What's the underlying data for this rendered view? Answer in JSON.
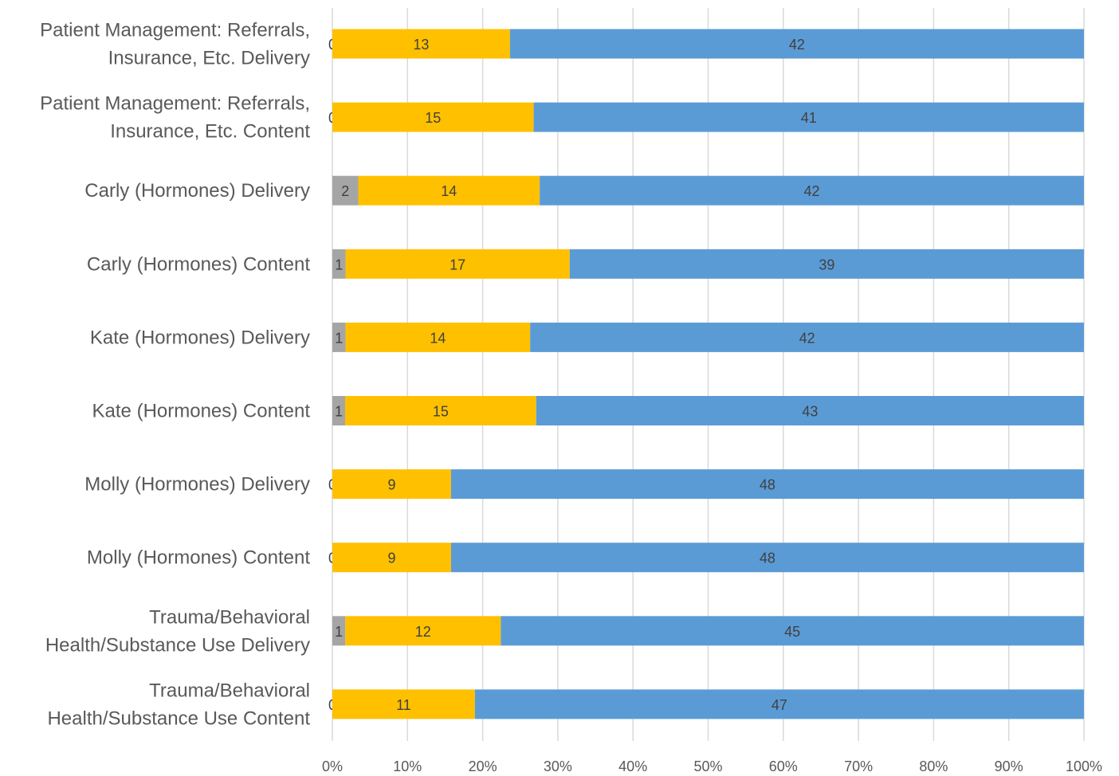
{
  "chart_data": {
    "type": "bar",
    "orientation": "horizontal",
    "stacked": "percent",
    "categories": [
      "Patient Management: Referrals, Insurance, Etc. Delivery",
      "Patient Management: Referrals, Insurance, Etc. Content",
      "Carly (Hormones) Delivery",
      "Carly (Hormones) Content",
      "Kate (Hormones) Delivery",
      "Kate (Hormones) Content",
      "Molly (Hormones) Delivery",
      "Molly (Hormones) Content",
      "Trauma/Behavioral Health/Substance Use Delivery",
      "Trauma/Behavioral Health/Substance Use Content"
    ],
    "category_lines": [
      [
        "Patient Management: Referrals,",
        "Insurance, Etc. Delivery"
      ],
      [
        "Patient Management: Referrals,",
        "Insurance, Etc. Content"
      ],
      [
        "Carly (Hormones) Delivery"
      ],
      [
        "Carly (Hormones) Content"
      ],
      [
        "Kate (Hormones) Delivery"
      ],
      [
        "Kate (Hormones) Content"
      ],
      [
        "Molly (Hormones) Delivery"
      ],
      [
        "Molly (Hormones) Content"
      ],
      [
        "Trauma/Behavioral",
        "Health/Substance Use Delivery"
      ],
      [
        "Trauma/Behavioral",
        "Health/Substance Use Content"
      ]
    ],
    "series": [
      {
        "values": [
          0,
          0,
          2,
          1,
          1,
          1,
          0,
          0,
          1,
          0
        ],
        "color": "#a5a5a5"
      },
      {
        "values": [
          13,
          15,
          14,
          17,
          14,
          15,
          9,
          9,
          12,
          11
        ],
        "color": "#ffc000"
      },
      {
        "values": [
          42,
          41,
          42,
          39,
          42,
          43,
          48,
          48,
          45,
          47
        ],
        "color": "#5b9bd5"
      }
    ],
    "x_ticks": [
      "0%",
      "10%",
      "20%",
      "30%",
      "40%",
      "50%",
      "60%",
      "70%",
      "80%",
      "90%",
      "100%"
    ],
    "xlim": [
      0,
      100
    ],
    "grid": true,
    "legend": "none",
    "title": "",
    "xlabel": "",
    "ylabel": ""
  }
}
